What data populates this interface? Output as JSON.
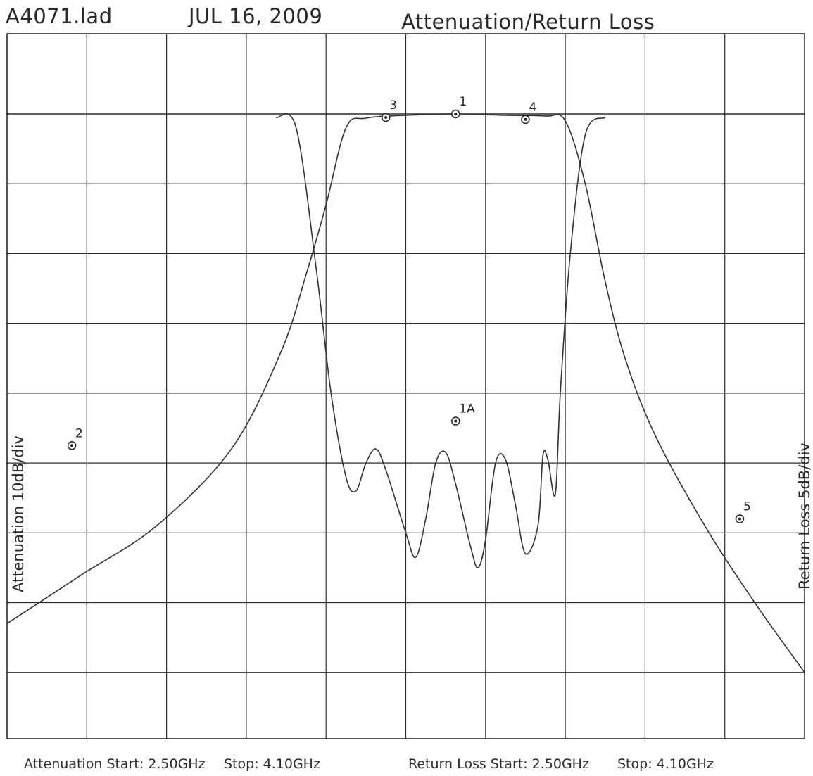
{
  "header": {
    "filename": "A4071.lad",
    "date": "JUL 16, 2009",
    "title": "Attenuation/Return Loss"
  },
  "footer": {
    "attenuation_start": "Attenuation Start: 2.50GHz",
    "attenuation_stop": "Stop: 4.10GHz",
    "return_loss_start": "Return Loss Start: 2.50GHz",
    "return_loss_stop": "Stop: 4.10GHz"
  },
  "axes": {
    "left_label": "Attenuation 10dB/div",
    "right_label": "Return Loss 5dB/div"
  },
  "colors": {
    "trace": "#333333",
    "grid": "#2b2b2b",
    "background": "#ffffff"
  },
  "chart_data": {
    "type": "line",
    "x": {
      "start_ghz": 2.5,
      "stop_ghz": 4.1,
      "divisions": 10
    },
    "y_divisions": 9,
    "grid": true,
    "series": [
      {
        "name": "Attenuation",
        "scale": "10dB/div",
        "points": [
          [
            2.5,
            7.3
          ],
          [
            2.65,
            6.6
          ],
          [
            2.8,
            5.9
          ],
          [
            2.95,
            4.8
          ],
          [
            3.05,
            3.4
          ],
          [
            3.1,
            2.3
          ],
          [
            3.14,
            1.3
          ],
          [
            3.18,
            0.2
          ],
          [
            3.22,
            0.06
          ],
          [
            3.3,
            0.02
          ],
          [
            3.4,
            0.0
          ],
          [
            3.5,
            0.02
          ],
          [
            3.58,
            0.03
          ],
          [
            3.62,
            0.1
          ],
          [
            3.66,
            1.0
          ],
          [
            3.7,
            2.4
          ],
          [
            3.74,
            3.5
          ],
          [
            3.8,
            4.6
          ],
          [
            3.9,
            5.9
          ],
          [
            4.0,
            7.0
          ],
          [
            4.1,
            8.0
          ]
        ]
      },
      {
        "name": "Return Loss",
        "scale": "5dB/div",
        "points": [
          [
            3.04,
            0.05
          ],
          [
            3.08,
            0.2
          ],
          [
            3.12,
            2.2
          ],
          [
            3.15,
            4.0
          ],
          [
            3.18,
            5.2
          ],
          [
            3.2,
            5.4
          ],
          [
            3.22,
            5.0
          ],
          [
            3.24,
            4.8
          ],
          [
            3.26,
            5.1
          ],
          [
            3.3,
            6.0
          ],
          [
            3.32,
            6.35
          ],
          [
            3.34,
            5.8
          ],
          [
            3.36,
            5.0
          ],
          [
            3.38,
            4.85
          ],
          [
            3.4,
            5.3
          ],
          [
            3.43,
            6.2
          ],
          [
            3.445,
            6.5
          ],
          [
            3.46,
            6.1
          ],
          [
            3.48,
            5.0
          ],
          [
            3.5,
            4.95
          ],
          [
            3.52,
            5.6
          ],
          [
            3.54,
            6.3
          ],
          [
            3.565,
            5.9
          ],
          [
            3.575,
            4.9
          ],
          [
            3.585,
            4.95
          ],
          [
            3.6,
            5.45
          ],
          [
            3.61,
            4.0
          ],
          [
            3.63,
            2.0
          ],
          [
            3.66,
            0.3
          ],
          [
            3.7,
            0.05
          ]
        ]
      }
    ],
    "markers": [
      {
        "label": "1",
        "x": 3.4,
        "y": 0.0,
        "series": "Attenuation"
      },
      {
        "label": "2",
        "x": 2.63,
        "y": 4.75,
        "series": "Attenuation"
      },
      {
        "label": "3",
        "x": 3.26,
        "y": 0.05,
        "series": "Attenuation"
      },
      {
        "label": "4",
        "x": 3.54,
        "y": 0.08,
        "series": "Attenuation"
      },
      {
        "label": "5",
        "x": 3.97,
        "y": 5.8,
        "series": "Attenuation"
      },
      {
        "label": "1A",
        "x": 3.4,
        "y": 4.4,
        "series": "Return Loss"
      }
    ]
  }
}
